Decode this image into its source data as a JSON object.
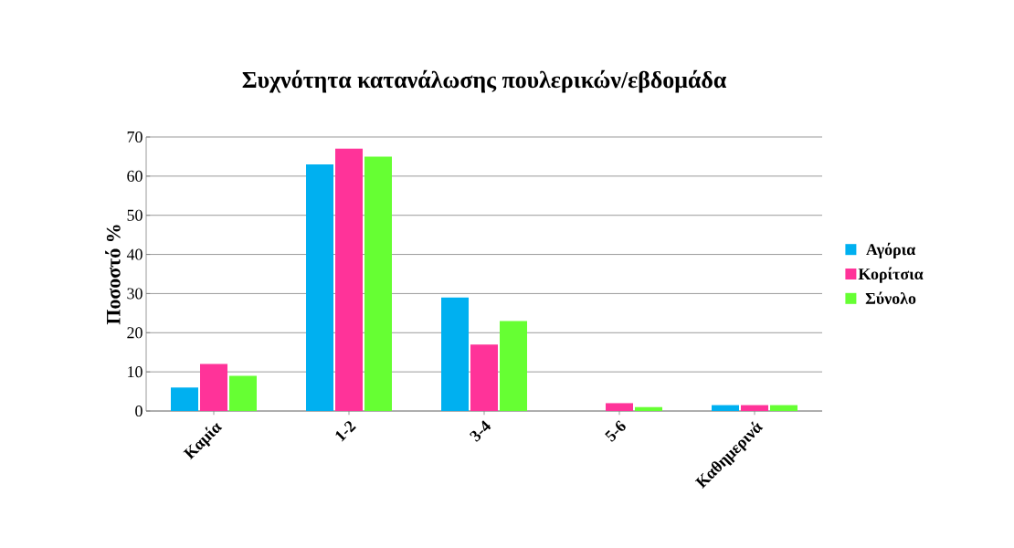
{
  "chart_data": {
    "type": "bar",
    "title": "Συχνότητα κατανάλωσης πουλερικών/εβδομάδα",
    "ylabel": "Ποσοστό %",
    "categories": [
      "Καμία",
      "1-2",
      "3-4",
      "5-6",
      "Καθημερινά"
    ],
    "series": [
      {
        "name": "Αγόρια",
        "color": "#00b0f0",
        "values": [
          6,
          63,
          29,
          0,
          1.5
        ]
      },
      {
        "name": "Κορίτσια",
        "color": "#ff3399",
        "values": [
          12,
          67,
          17,
          2,
          1.5
        ]
      },
      {
        "name": "Σύνολο",
        "color": "#66ff33",
        "values": [
          9,
          65,
          23,
          1,
          1.5
        ]
      }
    ],
    "ylim": [
      0,
      70
    ],
    "yticks": [
      0,
      10,
      20,
      30,
      40,
      50,
      60,
      70
    ],
    "grid": "y",
    "legend": "right"
  }
}
